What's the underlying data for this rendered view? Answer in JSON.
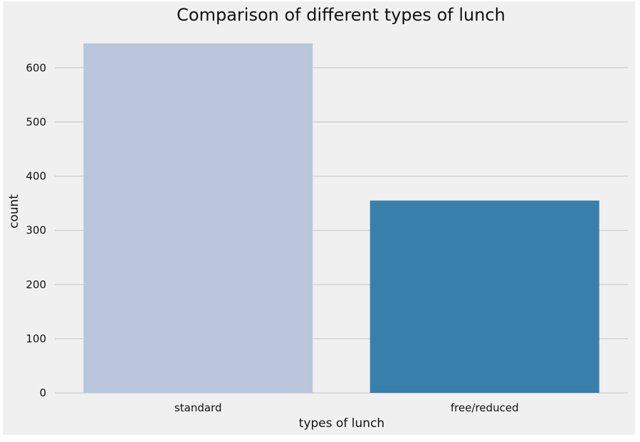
{
  "chart_data": {
    "type": "bar",
    "title": "Comparison of different types of lunch",
    "xlabel": "types of lunch",
    "ylabel": "count",
    "categories": [
      "standard",
      "free/reduced"
    ],
    "values": [
      645,
      355
    ],
    "colors": [
      "#b9c6db",
      "#3880ab"
    ],
    "ylim": [
      0,
      645
    ],
    "yticks": [
      0,
      100,
      200,
      300,
      400,
      500,
      600
    ],
    "grid": true,
    "background": "#f0f0f0"
  }
}
